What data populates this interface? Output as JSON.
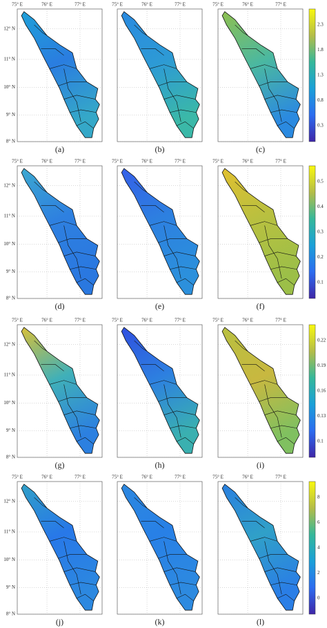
{
  "longitude_labels": [
    "75° E",
    "76° E",
    "77° E"
  ],
  "latitude_labels": [
    "12° N",
    "11° N",
    "10° N",
    "9° N",
    "8° N"
  ],
  "panels": [
    {
      "label": "(a)"
    },
    {
      "label": "(b)"
    },
    {
      "label": "(c)"
    },
    {
      "label": "(d)"
    },
    {
      "label": "(e)"
    },
    {
      "label": "(f)"
    },
    {
      "label": "(g)"
    },
    {
      "label": "(h)"
    },
    {
      "label": "(i)"
    },
    {
      "label": "(j)"
    },
    {
      "label": "(k)"
    },
    {
      "label": "(l)"
    }
  ],
  "colorbars": [
    {
      "ticks": [
        2.3,
        1.8,
        1.3,
        0.8,
        0.3
      ]
    },
    {
      "ticks": [
        0.5,
        0.4,
        0.3,
        0.2,
        0.1
      ]
    },
    {
      "ticks": [
        0.22,
        0.19,
        0.16,
        0.13,
        0.1
      ]
    },
    {
      "ticks": [
        8,
        6,
        4,
        2,
        0
      ]
    }
  ]
}
